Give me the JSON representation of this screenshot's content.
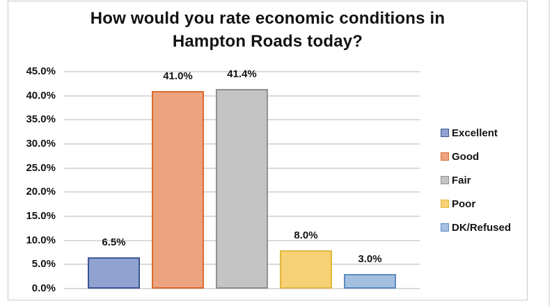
{
  "chart_data": {
    "type": "bar",
    "title": "How would you rate economic conditions in Hampton Roads today?",
    "title_lines": [
      "How would you rate economic conditions in",
      "Hampton Roads today?"
    ],
    "categories": [
      "Excellent",
      "Good",
      "Fair",
      "Poor",
      "DK/Refused"
    ],
    "values": [
      6.5,
      41.0,
      41.4,
      8.0,
      3.0
    ],
    "data_labels": [
      "6.5%",
      "41.0%",
      "41.4%",
      "8.0%",
      "3.0%"
    ],
    "xlabel": "",
    "ylabel": "",
    "ylim": [
      0,
      45
    ],
    "ytick_step": 5,
    "ytick_labels": [
      "0.0%",
      "5.0%",
      "10.0%",
      "15.0%",
      "20.0%",
      "25.0%",
      "30.0%",
      "35.0%",
      "40.0%",
      "45.0%"
    ],
    "grid": true,
    "legend_position": "right",
    "legend_entries": [
      "Excellent",
      "Good",
      "Fair",
      "Poor",
      "DK/Refused"
    ],
    "colors": {
      "series": [
        {
          "name": "Excellent",
          "fill": "#92A2D0",
          "border": "#3A5693"
        },
        {
          "name": "Good",
          "fill": "#ECA480",
          "border": "#DB6A2C"
        },
        {
          "name": "Fair",
          "fill": "#C4C4C4",
          "border": "#909090"
        },
        {
          "name": "Poor",
          "fill": "#F6D175",
          "border": "#E2B73E"
        },
        {
          "name": "DK/Refused",
          "fill": "#A4C0E1",
          "border": "#5D8AC0"
        }
      ],
      "gridline": "#DADADA",
      "axis_line": "#DADADA",
      "frame_border": "#C9C9C9",
      "text": "#131313",
      "background": "#FFFFFF"
    }
  }
}
